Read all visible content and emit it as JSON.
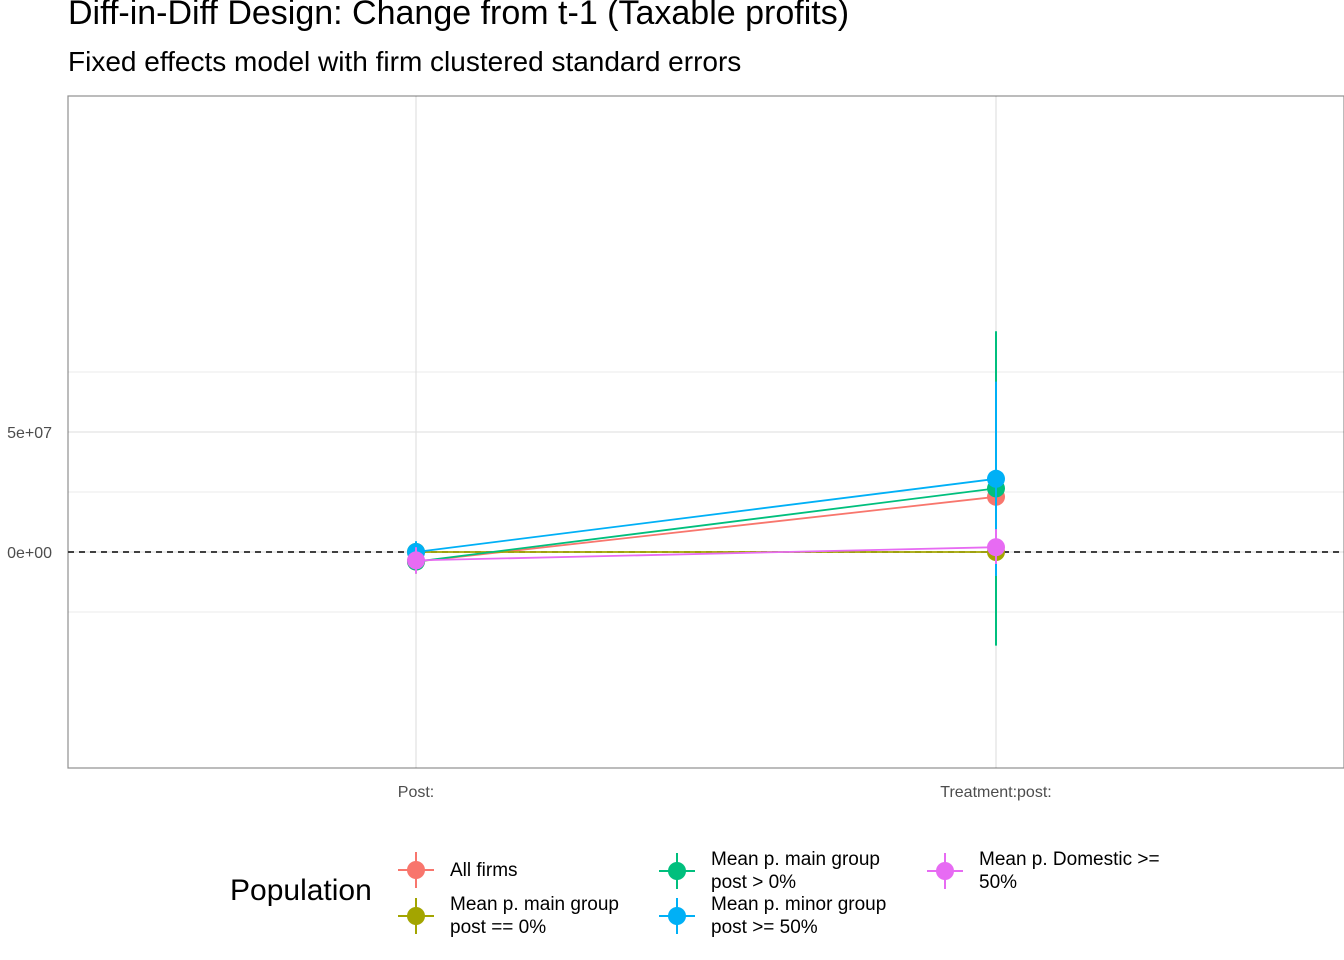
{
  "chart_data": {
    "type": "line",
    "title": "Diff-in-Diff Design: Change from t-1 (Taxable profits)",
    "subtitle": "Fixed effects model with firm clustered standard errors",
    "categories": [
      "Post:",
      "Treatment:post:"
    ],
    "ylim": [
      -90000000,
      190000000
    ],
    "y_ticks": [
      {
        "value": 50000000,
        "label": "5e+07"
      },
      {
        "value": 0,
        "label": "0e+00"
      }
    ],
    "y_minor_grid": [
      -25000000,
      25000000,
      75000000
    ],
    "reference_line": {
      "y": 0,
      "style": "dashed"
    },
    "grid": true,
    "legend": {
      "title": "Population",
      "position": "bottom"
    },
    "series": [
      {
        "name": "All firms",
        "color": "#F8766D",
        "values": [
          -4000000,
          23000000
        ],
        "ci_low": [
          -9000000,
          0
        ],
        "ci_high": [
          1000000,
          46000000
        ]
      },
      {
        "name": "Mean p. main group\npost == 0%",
        "color": "#A3A500",
        "values": [
          0,
          0
        ],
        "ci_low": [
          0,
          0
        ],
        "ci_high": [
          0,
          0
        ]
      },
      {
        "name": "Mean p. main group\npost > 0%",
        "color": "#00BF7D",
        "values": [
          -4000000,
          26500000
        ],
        "ci_low": [
          -9000000,
          -39000000
        ],
        "ci_high": [
          1000000,
          92000000
        ]
      },
      {
        "name": "Mean p. minor group\npost >= 50%",
        "color": "#00B0F6",
        "values": [
          0,
          30500000
        ],
        "ci_low": [
          -4500000,
          -10000000
        ],
        "ci_high": [
          4500000,
          71000000
        ]
      },
      {
        "name": "Mean p. Domestic >=\n50%",
        "color": "#E76BF3",
        "values": [
          -3500000,
          2000000
        ],
        "ci_low": [
          -9000000,
          -5000000
        ],
        "ci_high": [
          2000000,
          9500000
        ]
      }
    ]
  }
}
